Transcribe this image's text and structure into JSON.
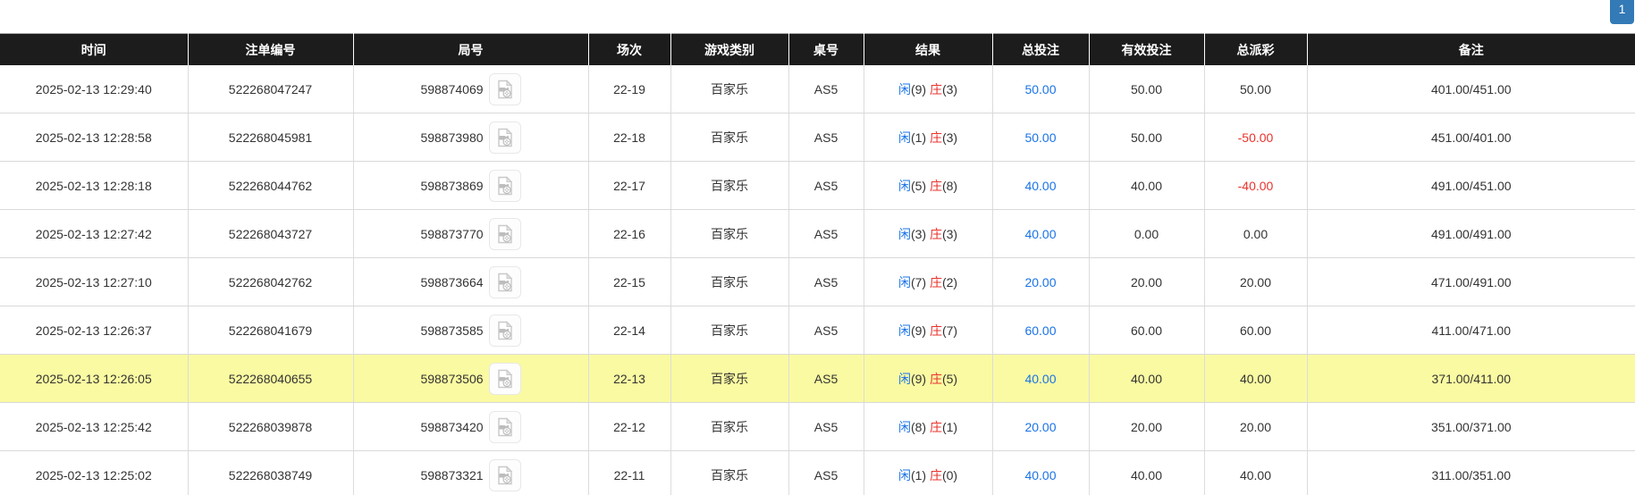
{
  "pagination": {
    "current_page": "1"
  },
  "table": {
    "columns": [
      {
        "key": "time",
        "label": "时间"
      },
      {
        "key": "bet_id",
        "label": "注单编号"
      },
      {
        "key": "round",
        "label": "局号"
      },
      {
        "key": "session",
        "label": "场次"
      },
      {
        "key": "game_type",
        "label": "游戏类别"
      },
      {
        "key": "table_no",
        "label": "桌号"
      },
      {
        "key": "result",
        "label": "结果"
      },
      {
        "key": "total_bet",
        "label": "总投注"
      },
      {
        "key": "valid_bet",
        "label": "有效投注"
      },
      {
        "key": "payout",
        "label": "总派彩"
      },
      {
        "key": "remark",
        "label": "备注"
      }
    ],
    "result_labels": {
      "player": "闲",
      "banker": "庄"
    },
    "icons": {
      "round_icon": "video-file-icon"
    },
    "colors": {
      "header_bg": "#1c1c1c",
      "link_blue": "#1a73e8",
      "player_blue": "#1a73e8",
      "banker_red": "#e8332d",
      "negative_red": "#e8332d",
      "highlight_yellow": "#fafaa2",
      "page_button_blue": "#337ab7"
    },
    "rows": [
      {
        "time": "2025-02-13 12:29:40",
        "bet_id": "522268047247",
        "round": "598874069",
        "session": "22-19",
        "game_type": "百家乐",
        "table_no": "AS5",
        "result": {
          "player": "9",
          "banker": "3"
        },
        "total_bet": "50.00",
        "valid_bet": "50.00",
        "payout": "50.00",
        "remark": "401.00/451.00",
        "highlighted": false
      },
      {
        "time": "2025-02-13 12:28:58",
        "bet_id": "522268045981",
        "round": "598873980",
        "session": "22-18",
        "game_type": "百家乐",
        "table_no": "AS5",
        "result": {
          "player": "1",
          "banker": "3"
        },
        "total_bet": "50.00",
        "valid_bet": "50.00",
        "payout": "-50.00",
        "remark": "451.00/401.00",
        "highlighted": false
      },
      {
        "time": "2025-02-13 12:28:18",
        "bet_id": "522268044762",
        "round": "598873869",
        "session": "22-17",
        "game_type": "百家乐",
        "table_no": "AS5",
        "result": {
          "player": "5",
          "banker": "8"
        },
        "total_bet": "40.00",
        "valid_bet": "40.00",
        "payout": "-40.00",
        "remark": "491.00/451.00",
        "highlighted": false
      },
      {
        "time": "2025-02-13 12:27:42",
        "bet_id": "522268043727",
        "round": "598873770",
        "session": "22-16",
        "game_type": "百家乐",
        "table_no": "AS5",
        "result": {
          "player": "3",
          "banker": "3"
        },
        "total_bet": "40.00",
        "valid_bet": "0.00",
        "payout": "0.00",
        "remark": "491.00/491.00",
        "highlighted": false
      },
      {
        "time": "2025-02-13 12:27:10",
        "bet_id": "522268042762",
        "round": "598873664",
        "session": "22-15",
        "game_type": "百家乐",
        "table_no": "AS5",
        "result": {
          "player": "7",
          "banker": "2"
        },
        "total_bet": "20.00",
        "valid_bet": "20.00",
        "payout": "20.00",
        "remark": "471.00/491.00",
        "highlighted": false
      },
      {
        "time": "2025-02-13 12:26:37",
        "bet_id": "522268041679",
        "round": "598873585",
        "session": "22-14",
        "game_type": "百家乐",
        "table_no": "AS5",
        "result": {
          "player": "9",
          "banker": "7"
        },
        "total_bet": "60.00",
        "valid_bet": "60.00",
        "payout": "60.00",
        "remark": "411.00/471.00",
        "highlighted": false
      },
      {
        "time": "2025-02-13 12:26:05",
        "bet_id": "522268040655",
        "round": "598873506",
        "session": "22-13",
        "game_type": "百家乐",
        "table_no": "AS5",
        "result": {
          "player": "9",
          "banker": "5"
        },
        "total_bet": "40.00",
        "valid_bet": "40.00",
        "payout": "40.00",
        "remark": "371.00/411.00",
        "highlighted": true
      },
      {
        "time": "2025-02-13 12:25:42",
        "bet_id": "522268039878",
        "round": "598873420",
        "session": "22-12",
        "game_type": "百家乐",
        "table_no": "AS5",
        "result": {
          "player": "8",
          "banker": "1"
        },
        "total_bet": "20.00",
        "valid_bet": "20.00",
        "payout": "20.00",
        "remark": "351.00/371.00",
        "highlighted": false
      },
      {
        "time": "2025-02-13 12:25:02",
        "bet_id": "522268038749",
        "round": "598873321",
        "session": "22-11",
        "game_type": "百家乐",
        "table_no": "AS5",
        "result": {
          "player": "1",
          "banker": "0"
        },
        "total_bet": "40.00",
        "valid_bet": "40.00",
        "payout": "40.00",
        "remark": "311.00/351.00",
        "highlighted": false
      }
    ]
  }
}
